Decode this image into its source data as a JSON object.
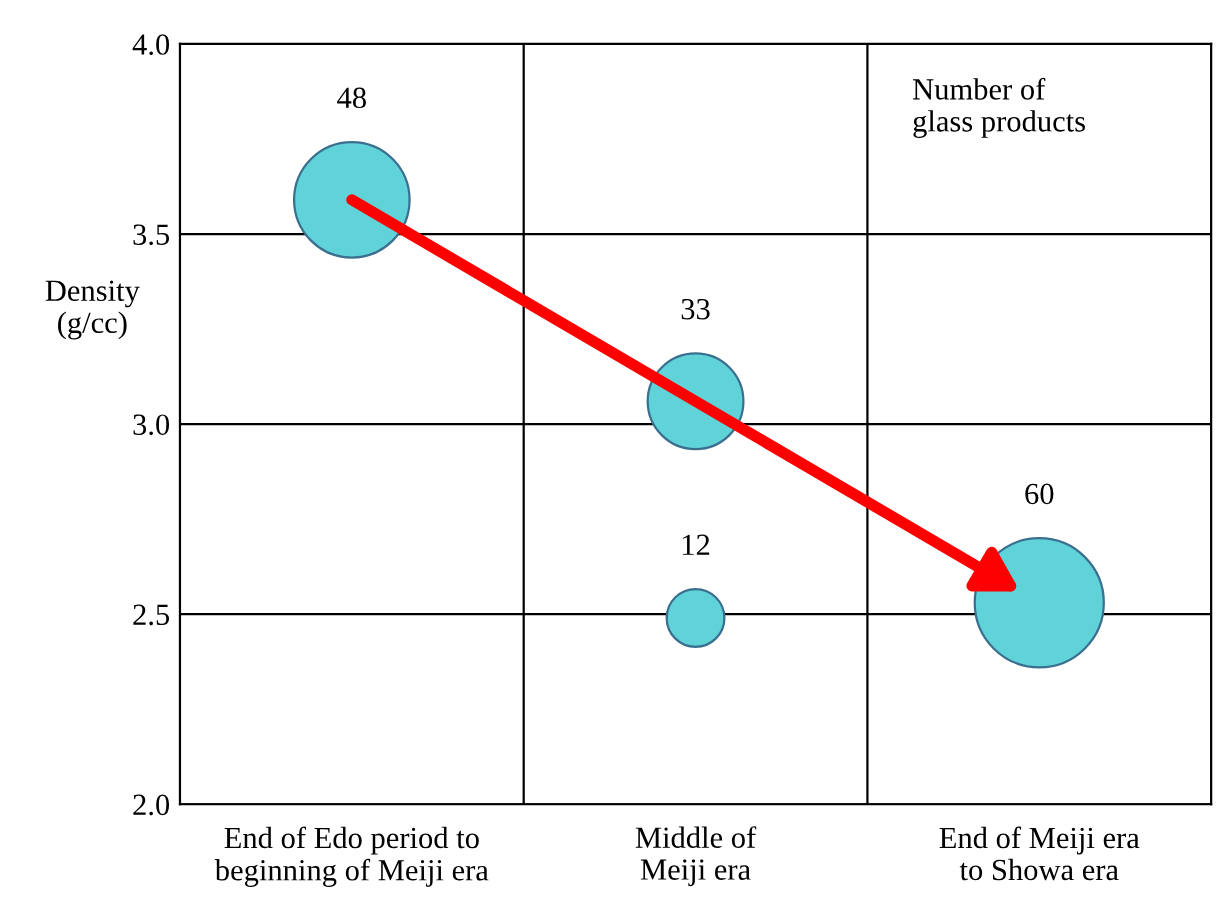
{
  "chart_data": {
    "type": "bubble",
    "ylabel": "Density\n(g/cc)",
    "annotations": [
      "Number of\nglass products"
    ],
    "categories": [
      "End of Edo period to\nbeginning of Meiji era",
      "Middle of\nMeiji era",
      "End of Meiji era\nto Showa era"
    ],
    "series": [
      {
        "color": "#5fd3d8",
        "values": [
          3.59,
          3.06,
          2.53
        ],
        "sizes": [
          48,
          33,
          60
        ],
        "value_labels": [
          "48",
          "33",
          "60"
        ]
      },
      {
        "color": "#5fd3d8",
        "values": [
          null,
          2.49,
          null
        ],
        "sizes": [
          null,
          12,
          null
        ],
        "value_labels": [
          null,
          "12",
          null
        ]
      }
    ],
    "ylim": [
      2.0,
      4.0
    ],
    "yticks": [
      {
        "value": 2.0,
        "label": "2.0"
      },
      {
        "value": 2.5,
        "label": "2.5"
      },
      {
        "value": 3.0,
        "label": "3.0"
      },
      {
        "value": 3.5,
        "label": "3.5"
      },
      {
        "value": 4.0,
        "label": "4.0"
      }
    ],
    "grid": true,
    "legend": false
  }
}
